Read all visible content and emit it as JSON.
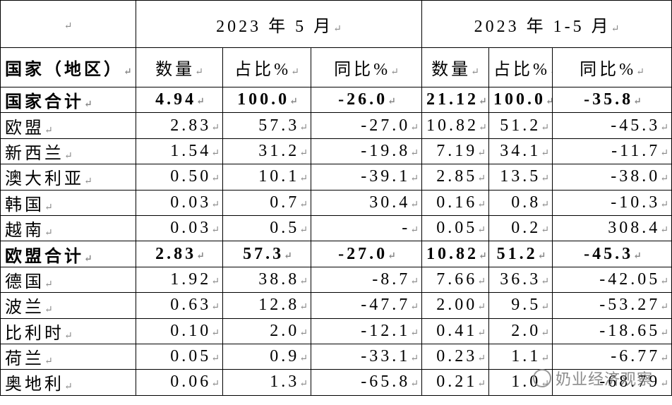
{
  "header": {
    "period1": "2023 年 5 月",
    "period2": "2023 年 1-5 月"
  },
  "table": {
    "columns": [
      "国家（地区）",
      "数量",
      "占比%",
      "同比%",
      "数量",
      "占比%",
      "同比%"
    ],
    "rows": [
      {
        "emphasis": true,
        "cells": [
          "国家合计",
          "4.94",
          "100.0",
          "-26.0",
          "21.12",
          "100.0",
          "-35.8"
        ]
      },
      {
        "emphasis": false,
        "cells": [
          "欧盟",
          "2.83",
          "57.3",
          "-27.0",
          "10.82",
          "51.2",
          "-45.3"
        ]
      },
      {
        "emphasis": false,
        "cells": [
          "新西兰",
          "1.54",
          "31.2",
          "-19.8",
          "7.19",
          "34.1",
          "-11.7"
        ]
      },
      {
        "emphasis": false,
        "cells": [
          "澳大利亚",
          "0.50",
          "10.1",
          "-39.1",
          "2.85",
          "13.5",
          "-38.0"
        ]
      },
      {
        "emphasis": false,
        "cells": [
          "韩国",
          "0.03",
          "0.7",
          "30.4",
          "0.16",
          "0.8",
          "-10.3"
        ]
      },
      {
        "emphasis": false,
        "cells": [
          "越南",
          "0.03",
          "0.5",
          "-",
          "0.05",
          "0.2",
          "308.4"
        ]
      },
      {
        "emphasis": true,
        "cells": [
          "欧盟合计",
          "2.83",
          "57.3",
          "-27.0",
          "10.82",
          "51.2",
          "-45.3"
        ]
      },
      {
        "emphasis": false,
        "cells": [
          "德国",
          "1.92",
          "38.8",
          "-8.7",
          "7.66",
          "36.3",
          "-42.05"
        ]
      },
      {
        "emphasis": false,
        "cells": [
          "波兰",
          "0.63",
          "12.8",
          "-47.7",
          "2.00",
          "9.5",
          "-53.27"
        ]
      },
      {
        "emphasis": false,
        "cells": [
          "比利时",
          "0.10",
          "2.0",
          "-12.1",
          "0.41",
          "2.0",
          "-18.65"
        ]
      },
      {
        "emphasis": false,
        "cells": [
          "荷兰",
          "0.05",
          "0.9",
          "-33.1",
          "0.23",
          "1.1",
          "-6.77"
        ]
      },
      {
        "emphasis": false,
        "cells": [
          "奥地利",
          "0.06",
          "1.3",
          "-65.8",
          "0.21",
          "1.0",
          "-68.79"
        ]
      }
    ]
  },
  "watermark": "奶业经济观察"
}
